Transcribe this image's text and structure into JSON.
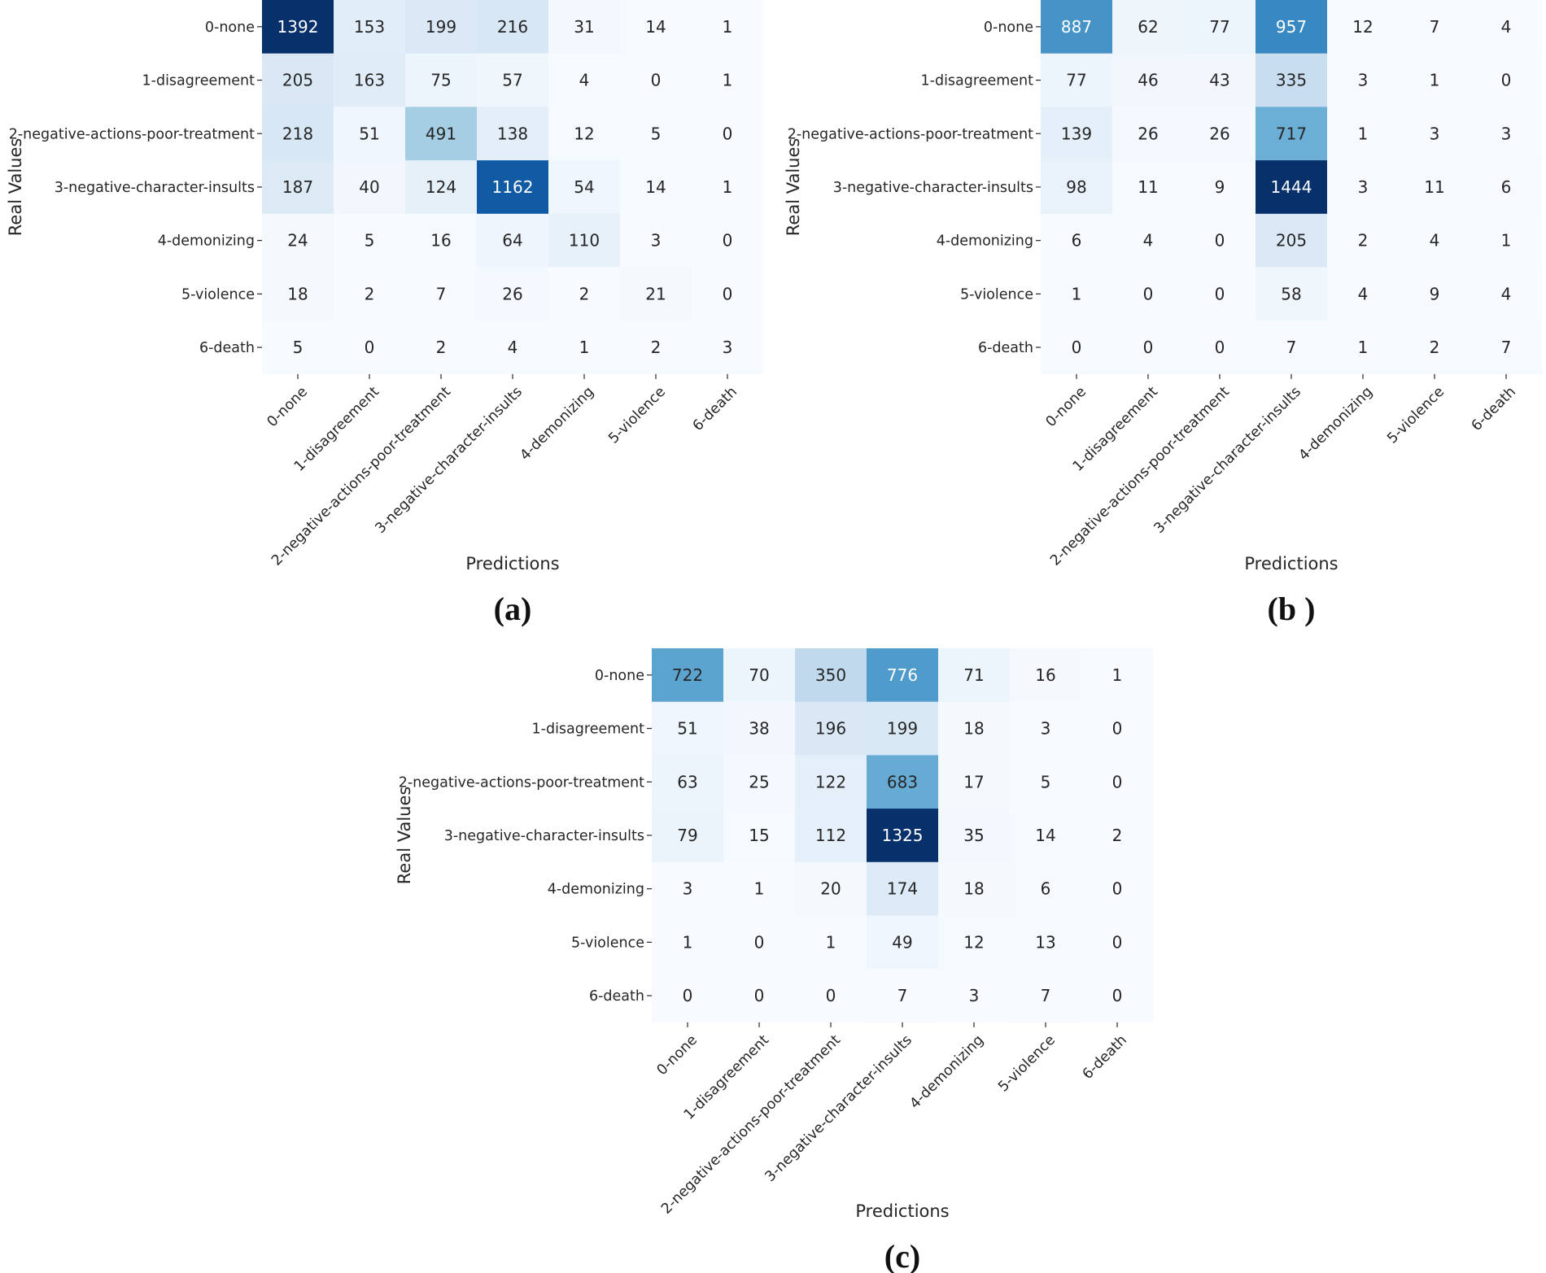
{
  "colors": {
    "low": "#f7fbff",
    "high": "#08306b",
    "text_dark": "#262626",
    "text_light": "#ffffff"
  },
  "chart_data": [
    {
      "type": "heatmap",
      "panel_label": "(a)",
      "xlabel": "Predictions",
      "ylabel": "Real Values",
      "row_labels": [
        "0-none",
        "1-disagreement",
        "2-negative-actions-poor-treatment",
        "3-negative-character-insults",
        "4-demonizing",
        "5-violence",
        "6-death"
      ],
      "col_labels": [
        "0-none",
        "1-disagreement",
        "2-negative-actions-poor-treatment",
        "3-negative-character-insults",
        "4-demonizing",
        "5-violence",
        "6-death"
      ],
      "values": [
        [
          1392,
          153,
          199,
          216,
          31,
          14,
          1
        ],
        [
          205,
          163,
          75,
          57,
          4,
          0,
          1
        ],
        [
          218,
          51,
          491,
          138,
          12,
          5,
          0
        ],
        [
          187,
          40,
          124,
          1162,
          54,
          14,
          1
        ],
        [
          24,
          5,
          16,
          64,
          110,
          3,
          0
        ],
        [
          18,
          2,
          7,
          26,
          2,
          21,
          0
        ],
        [
          5,
          0,
          2,
          4,
          1,
          2,
          3
        ]
      ]
    },
    {
      "type": "heatmap",
      "panel_label": "(b )",
      "xlabel": "Predictions",
      "ylabel": "Real Values",
      "row_labels": [
        "0-none",
        "1-disagreement",
        "2-negative-actions-poor-treatment",
        "3-negative-character-insults",
        "4-demonizing",
        "5-violence",
        "6-death"
      ],
      "col_labels": [
        "0-none",
        "1-disagreement",
        "2-negative-actions-poor-treatment",
        "3-negative-character-insults",
        "4-demonizing",
        "5-violence",
        "6-death"
      ],
      "values": [
        [
          887,
          62,
          77,
          957,
          12,
          7,
          4
        ],
        [
          77,
          46,
          43,
          335,
          3,
          1,
          0
        ],
        [
          139,
          26,
          26,
          717,
          1,
          3,
          3
        ],
        [
          98,
          11,
          9,
          1444,
          3,
          11,
          6
        ],
        [
          6,
          4,
          0,
          205,
          2,
          4,
          1
        ],
        [
          1,
          0,
          0,
          58,
          4,
          9,
          4
        ],
        [
          0,
          0,
          0,
          7,
          1,
          2,
          7
        ]
      ]
    },
    {
      "type": "heatmap",
      "panel_label": "(c)",
      "xlabel": "Predictions",
      "ylabel": "Real Values",
      "row_labels": [
        "0-none",
        "1-disagreement",
        "2-negative-actions-poor-treatment",
        "3-negative-character-insults",
        "4-demonizing",
        "5-violence",
        "6-death"
      ],
      "col_labels": [
        "0-none",
        "1-disagreement",
        "2-negative-actions-poor-treatment",
        "3-negative-character-insults",
        "4-demonizing",
        "5-violence",
        "6-death"
      ],
      "values": [
        [
          722,
          70,
          350,
          776,
          71,
          16,
          1
        ],
        [
          51,
          38,
          196,
          199,
          18,
          3,
          0
        ],
        [
          63,
          25,
          122,
          683,
          17,
          5,
          0
        ],
        [
          79,
          15,
          112,
          1325,
          35,
          14,
          2
        ],
        [
          3,
          1,
          20,
          174,
          18,
          6,
          0
        ],
        [
          1,
          0,
          1,
          49,
          12,
          13,
          0
        ],
        [
          0,
          0,
          0,
          7,
          3,
          7,
          0
        ]
      ]
    }
  ]
}
